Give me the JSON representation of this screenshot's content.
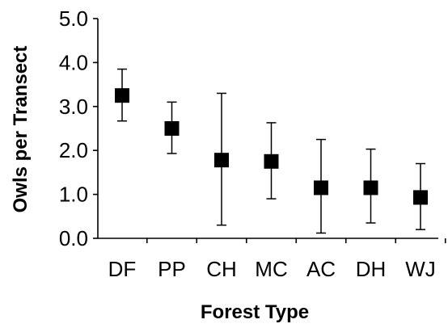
{
  "chart_data": {
    "type": "scatter",
    "title": "",
    "xlabel": "Forest Type",
    "ylabel": "Owls per Transect",
    "ylim": [
      0,
      5
    ],
    "yticks": [
      "0.0",
      "1.0",
      "2.0",
      "3.0",
      "4.0",
      "5.0"
    ],
    "categories": [
      "DF",
      "PP",
      "CH",
      "MC",
      "AC",
      "DH",
      "WJ"
    ],
    "values": [
      3.25,
      2.5,
      1.78,
      1.75,
      1.15,
      1.15,
      0.93
    ],
    "error_low": [
      2.67,
      1.93,
      0.3,
      0.9,
      0.12,
      0.35,
      0.2
    ],
    "error_high": [
      3.85,
      3.1,
      3.3,
      2.63,
      2.25,
      2.03,
      1.7
    ],
    "marker": "square",
    "grid": false,
    "colors": {
      "marker": "#000000",
      "axis": "#000000"
    }
  }
}
